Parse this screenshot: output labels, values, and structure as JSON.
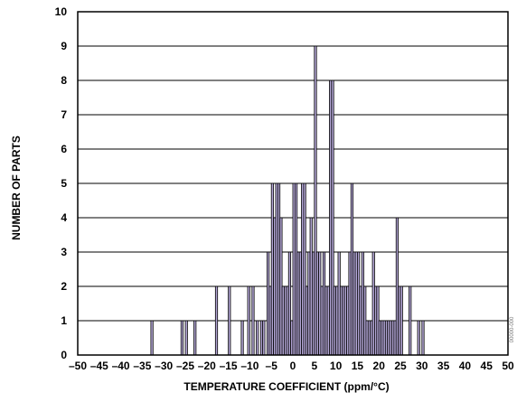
{
  "chart_data": {
    "type": "bar",
    "title": "",
    "xlabel": "TEMPERATURE COEFFICIENT (ppm/°C)",
    "ylabel": "NUMBER OF PARTS",
    "xlim": [
      -50,
      50
    ],
    "ylim": [
      0,
      10
    ],
    "x_ticks": [
      -50,
      -45,
      -40,
      -35,
      -30,
      -25,
      -20,
      -15,
      -10,
      -5,
      0,
      5,
      10,
      15,
      20,
      25,
      30,
      35,
      40,
      45,
      50
    ],
    "y_ticks": [
      0,
      1,
      2,
      3,
      4,
      5,
      6,
      7,
      8,
      9,
      10
    ],
    "grid": "horizontal",
    "bar_color": "#b3a6d6",
    "bar_edge_color": "#000000",
    "x": [
      -33,
      -26,
      -25,
      -23,
      -18,
      -15,
      -12,
      -10.5,
      -9.5,
      -8.5,
      -7.5,
      -7,
      -6,
      -5.5,
      -5,
      -4.5,
      -4,
      -3.5,
      -3,
      -2.5,
      -2,
      -1.5,
      -1,
      -0.5,
      0,
      0.5,
      1,
      1.5,
      2,
      2.5,
      3,
      3.5,
      4,
      4.5,
      5,
      5.5,
      6,
      6.5,
      7,
      7.5,
      8,
      8.5,
      9,
      9.5,
      10,
      10.5,
      11,
      11.5,
      12,
      12.5,
      13,
      13.5,
      14,
      14.5,
      15,
      15.5,
      16,
      16.5,
      17,
      17.5,
      18,
      18.5,
      19,
      19.5,
      20,
      20.5,
      21,
      21.5,
      22,
      22.5,
      23,
      23.5,
      24,
      24.5,
      25,
      27,
      29,
      30
    ],
    "values": [
      1,
      1,
      1,
      1,
      2,
      2,
      1,
      2,
      2,
      1,
      1,
      1,
      3,
      2,
      5,
      4,
      5,
      5,
      4,
      2,
      2,
      2,
      3,
      1,
      5,
      5,
      3,
      3,
      5,
      5,
      2,
      3,
      4,
      3,
      9,
      3,
      3,
      2,
      3,
      2,
      2,
      8,
      8,
      2,
      2,
      3,
      2,
      2,
      2,
      2,
      3,
      5,
      3,
      3,
      3,
      2,
      3,
      2,
      1,
      1,
      1,
      3,
      2,
      2,
      1,
      1,
      1,
      1,
      1,
      1,
      1,
      1,
      4,
      2,
      2,
      2,
      1,
      1
    ],
    "bin_width": 0.5,
    "side_code": "00000-000"
  }
}
